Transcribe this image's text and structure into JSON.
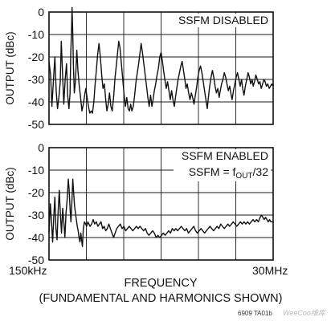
{
  "chart_data": [
    {
      "type": "line",
      "title": "",
      "annotation": "SSFM DISABLED",
      "ylabel": "OUTPUT (dBc)",
      "ylim": [
        -50,
        0
      ],
      "yticks": [
        0,
        -10,
        -20,
        -30,
        -40,
        -50
      ],
      "xlim": [
        0,
        1
      ],
      "grid": true,
      "points": [
        [
          0.0,
          -22
        ],
        [
          0.007,
          -28
        ],
        [
          0.013,
          -42
        ],
        [
          0.02,
          -30
        ],
        [
          0.026,
          -20
        ],
        [
          0.032,
          -35
        ],
        [
          0.038,
          -43
        ],
        [
          0.044,
          -38
        ],
        [
          0.05,
          -31
        ],
        [
          0.055,
          -13
        ],
        [
          0.06,
          -26
        ],
        [
          0.066,
          -41
        ],
        [
          0.072,
          -30
        ],
        [
          0.078,
          -23
        ],
        [
          0.083,
          -37
        ],
        [
          0.089,
          -43
        ],
        [
          0.094,
          -36
        ],
        [
          0.097,
          -18
        ],
        [
          0.1,
          -10
        ],
        [
          0.103,
          2
        ],
        [
          0.106,
          -10
        ],
        [
          0.109,
          -24
        ],
        [
          0.113,
          -36
        ],
        [
          0.118,
          -31
        ],
        [
          0.124,
          -17
        ],
        [
          0.129,
          -26
        ],
        [
          0.135,
          -33
        ],
        [
          0.141,
          -38
        ],
        [
          0.147,
          -44
        ],
        [
          0.153,
          -41
        ],
        [
          0.159,
          -37
        ],
        [
          0.164,
          -34
        ],
        [
          0.17,
          -38
        ],
        [
          0.176,
          -42
        ],
        [
          0.182,
          -45
        ],
        [
          0.188,
          -44
        ],
        [
          0.194,
          -45
        ],
        [
          0.2,
          -40
        ],
        [
          0.205,
          -33
        ],
        [
          0.211,
          -26
        ],
        [
          0.217,
          -19
        ],
        [
          0.223,
          -14
        ],
        [
          0.229,
          -20
        ],
        [
          0.235,
          -28
        ],
        [
          0.241,
          -34
        ],
        [
          0.247,
          -32
        ],
        [
          0.253,
          -39
        ],
        [
          0.258,
          -44
        ],
        [
          0.264,
          -41
        ],
        [
          0.27,
          -36
        ],
        [
          0.276,
          -42
        ],
        [
          0.282,
          -44
        ],
        [
          0.288,
          -38
        ],
        [
          0.294,
          -30
        ],
        [
          0.3,
          -24
        ],
        [
          0.306,
          -18
        ],
        [
          0.311,
          -13
        ],
        [
          0.317,
          -16
        ],
        [
          0.323,
          -23
        ],
        [
          0.329,
          -30
        ],
        [
          0.335,
          -37
        ],
        [
          0.341,
          -42
        ],
        [
          0.347,
          -38
        ],
        [
          0.353,
          -43
        ],
        [
          0.359,
          -44
        ],
        [
          0.364,
          -41
        ],
        [
          0.37,
          -44
        ],
        [
          0.376,
          -42
        ],
        [
          0.382,
          -37
        ],
        [
          0.388,
          -31
        ],
        [
          0.394,
          -27
        ],
        [
          0.4,
          -23
        ],
        [
          0.406,
          -18
        ],
        [
          0.411,
          -14
        ],
        [
          0.417,
          -18
        ],
        [
          0.423,
          -23
        ],
        [
          0.429,
          -28
        ],
        [
          0.435,
          -33
        ],
        [
          0.441,
          -38
        ],
        [
          0.447,
          -42
        ],
        [
          0.453,
          -37
        ],
        [
          0.459,
          -42
        ],
        [
          0.464,
          -39
        ],
        [
          0.47,
          -35
        ],
        [
          0.476,
          -32
        ],
        [
          0.482,
          -28
        ],
        [
          0.488,
          -25
        ],
        [
          0.494,
          -20
        ],
        [
          0.5,
          -18
        ],
        [
          0.506,
          -22
        ],
        [
          0.511,
          -26
        ],
        [
          0.517,
          -30
        ],
        [
          0.523,
          -34
        ],
        [
          0.529,
          -31
        ],
        [
          0.535,
          -35
        ],
        [
          0.541,
          -39
        ],
        [
          0.547,
          -35
        ],
        [
          0.553,
          -39
        ],
        [
          0.559,
          -42
        ],
        [
          0.564,
          -38
        ],
        [
          0.57,
          -34
        ],
        [
          0.576,
          -30
        ],
        [
          0.582,
          -27
        ],
        [
          0.588,
          -24
        ],
        [
          0.594,
          -22
        ],
        [
          0.6,
          -26
        ],
        [
          0.606,
          -30
        ],
        [
          0.611,
          -34
        ],
        [
          0.617,
          -32
        ],
        [
          0.623,
          -36
        ],
        [
          0.629,
          -39
        ],
        [
          0.635,
          -36
        ],
        [
          0.641,
          -38
        ],
        [
          0.647,
          -41
        ],
        [
          0.653,
          -37
        ],
        [
          0.659,
          -33
        ],
        [
          0.664,
          -29
        ],
        [
          0.67,
          -26
        ],
        [
          0.676,
          -24
        ],
        [
          0.682,
          -27
        ],
        [
          0.688,
          -31
        ],
        [
          0.694,
          -35
        ],
        [
          0.7,
          -39
        ],
        [
          0.706,
          -43
        ],
        [
          0.711,
          -38
        ],
        [
          0.717,
          -33
        ],
        [
          0.723,
          -29
        ],
        [
          0.729,
          -26
        ],
        [
          0.735,
          -29
        ],
        [
          0.741,
          -33
        ],
        [
          0.747,
          -36
        ],
        [
          0.753,
          -34
        ],
        [
          0.759,
          -38
        ],
        [
          0.764,
          -35
        ],
        [
          0.77,
          -32
        ],
        [
          0.776,
          -30
        ],
        [
          0.782,
          -27
        ],
        [
          0.788,
          -29
        ],
        [
          0.794,
          -32
        ],
        [
          0.8,
          -35
        ],
        [
          0.806,
          -33
        ],
        [
          0.811,
          -36
        ],
        [
          0.817,
          -39
        ],
        [
          0.823,
          -35
        ],
        [
          0.829,
          -32
        ],
        [
          0.835,
          -29
        ],
        [
          0.841,
          -27
        ],
        [
          0.847,
          -30
        ],
        [
          0.853,
          -33
        ],
        [
          0.859,
          -30
        ],
        [
          0.864,
          -34
        ],
        [
          0.87,
          -37
        ],
        [
          0.876,
          -33
        ],
        [
          0.882,
          -30
        ],
        [
          0.888,
          -27
        ],
        [
          0.894,
          -29
        ],
        [
          0.9,
          -32
        ],
        [
          0.906,
          -30
        ],
        [
          0.911,
          -33
        ],
        [
          0.917,
          -31
        ],
        [
          0.923,
          -28
        ],
        [
          0.929,
          -30
        ],
        [
          0.935,
          -32
        ],
        [
          0.941,
          -31
        ],
        [
          0.947,
          -34
        ],
        [
          0.953,
          -32
        ],
        [
          0.959,
          -30
        ],
        [
          0.964,
          -31
        ],
        [
          0.97,
          -33
        ],
        [
          0.976,
          -32
        ],
        [
          0.982,
          -34
        ],
        [
          0.988,
          -33
        ],
        [
          0.994,
          -32
        ],
        [
          1.0,
          -33
        ]
      ]
    },
    {
      "type": "line",
      "title": "",
      "annotation_line1": "SSFM ENABLED",
      "annotation_line2_prefix": "SSFM = f",
      "annotation_line2_sub": "OUT",
      "annotation_line2_suffix": "/32",
      "ylabel": "OUTPUT (dBc)",
      "ylim": [
        -50,
        0
      ],
      "yticks": [
        0,
        -10,
        -20,
        -30,
        -40,
        -50
      ],
      "xlim": [
        0,
        1
      ],
      "xlabel": "FREQUENCY",
      "xnote": "(FUNDAMENTAL AND HARMONICS SHOWN)",
      "xtick_left": "150kHz",
      "xtick_right": "30MHz",
      "grid": true,
      "points": [
        [
          0.0,
          -38
        ],
        [
          0.006,
          -25
        ],
        [
          0.011,
          -33
        ],
        [
          0.016,
          -42
        ],
        [
          0.021,
          -31
        ],
        [
          0.026,
          -22
        ],
        [
          0.031,
          -36
        ],
        [
          0.036,
          -41
        ],
        [
          0.041,
          -28
        ],
        [
          0.046,
          -19
        ],
        [
          0.051,
          -30
        ],
        [
          0.056,
          -38
        ],
        [
          0.061,
          -27
        ],
        [
          0.066,
          -33
        ],
        [
          0.071,
          -40
        ],
        [
          0.076,
          -29
        ],
        [
          0.081,
          -23
        ],
        [
          0.086,
          -14
        ],
        [
          0.09,
          -19
        ],
        [
          0.094,
          -27
        ],
        [
          0.098,
          -33
        ],
        [
          0.102,
          -24
        ],
        [
          0.106,
          -14
        ],
        [
          0.11,
          -20
        ],
        [
          0.114,
          -26
        ],
        [
          0.118,
          -29
        ],
        [
          0.122,
          -32
        ],
        [
          0.126,
          -35
        ],
        [
          0.13,
          -37
        ],
        [
          0.134,
          -40
        ],
        [
          0.138,
          -42
        ],
        [
          0.142,
          -38
        ],
        [
          0.145,
          -41
        ],
        [
          0.149,
          -44
        ],
        [
          0.153,
          -36
        ],
        [
          0.158,
          -33
        ],
        [
          0.163,
          -34
        ],
        [
          0.168,
          -35
        ],
        [
          0.173,
          -33
        ],
        [
          0.178,
          -34
        ],
        [
          0.183,
          -35
        ],
        [
          0.19,
          -34
        ],
        [
          0.197,
          -32
        ],
        [
          0.204,
          -34
        ],
        [
          0.211,
          -33
        ],
        [
          0.218,
          -35
        ],
        [
          0.225,
          -34
        ],
        [
          0.232,
          -33
        ],
        [
          0.239,
          -36
        ],
        [
          0.246,
          -35
        ],
        [
          0.253,
          -37
        ],
        [
          0.26,
          -36
        ],
        [
          0.267,
          -34
        ],
        [
          0.274,
          -36
        ],
        [
          0.281,
          -38
        ],
        [
          0.288,
          -40
        ],
        [
          0.295,
          -38
        ],
        [
          0.302,
          -36
        ],
        [
          0.31,
          -35
        ],
        [
          0.318,
          -34
        ],
        [
          0.326,
          -36
        ],
        [
          0.334,
          -35
        ],
        [
          0.342,
          -37
        ],
        [
          0.35,
          -36
        ],
        [
          0.358,
          -35
        ],
        [
          0.366,
          -36
        ],
        [
          0.374,
          -37
        ],
        [
          0.382,
          -36
        ],
        [
          0.39,
          -35
        ],
        [
          0.398,
          -36
        ],
        [
          0.406,
          -35
        ],
        [
          0.414,
          -36
        ],
        [
          0.422,
          -37
        ],
        [
          0.43,
          -36
        ],
        [
          0.438,
          -38
        ],
        [
          0.446,
          -39
        ],
        [
          0.454,
          -38
        ],
        [
          0.462,
          -37
        ],
        [
          0.47,
          -38
        ],
        [
          0.478,
          -40
        ],
        [
          0.486,
          -39
        ],
        [
          0.494,
          -40
        ],
        [
          0.502,
          -39
        ],
        [
          0.51,
          -38
        ],
        [
          0.518,
          -39
        ],
        [
          0.526,
          -38
        ],
        [
          0.534,
          -37
        ],
        [
          0.542,
          -38
        ],
        [
          0.55,
          -36
        ],
        [
          0.558,
          -37
        ],
        [
          0.566,
          -36
        ],
        [
          0.574,
          -37
        ],
        [
          0.582,
          -36
        ],
        [
          0.59,
          -35
        ],
        [
          0.598,
          -36
        ],
        [
          0.606,
          -37
        ],
        [
          0.614,
          -36
        ],
        [
          0.622,
          -38
        ],
        [
          0.63,
          -37
        ],
        [
          0.638,
          -36
        ],
        [
          0.646,
          -35
        ],
        [
          0.654,
          -37
        ],
        [
          0.662,
          -38
        ],
        [
          0.67,
          -37
        ],
        [
          0.678,
          -36
        ],
        [
          0.686,
          -37
        ],
        [
          0.694,
          -38
        ],
        [
          0.702,
          -37
        ],
        [
          0.71,
          -36
        ],
        [
          0.718,
          -35
        ],
        [
          0.726,
          -36
        ],
        [
          0.734,
          -37
        ],
        [
          0.742,
          -36
        ],
        [
          0.75,
          -35
        ],
        [
          0.758,
          -36
        ],
        [
          0.766,
          -34
        ],
        [
          0.774,
          -35
        ],
        [
          0.782,
          -36
        ],
        [
          0.79,
          -35
        ],
        [
          0.798,
          -34
        ],
        [
          0.806,
          -35
        ],
        [
          0.814,
          -34
        ],
        [
          0.822,
          -33
        ],
        [
          0.83,
          -34
        ],
        [
          0.838,
          -35
        ],
        [
          0.846,
          -34
        ],
        [
          0.854,
          -33
        ],
        [
          0.862,
          -34
        ],
        [
          0.87,
          -33
        ],
        [
          0.878,
          -34
        ],
        [
          0.886,
          -33
        ],
        [
          0.894,
          -34
        ],
        [
          0.902,
          -33
        ],
        [
          0.91,
          -32
        ],
        [
          0.918,
          -33
        ],
        [
          0.926,
          -32
        ],
        [
          0.934,
          -33
        ],
        [
          0.942,
          -31
        ],
        [
          0.948,
          -30
        ],
        [
          0.954,
          -31
        ],
        [
          0.96,
          -32
        ],
        [
          0.966,
          -31
        ],
        [
          0.972,
          -32
        ],
        [
          0.978,
          -33
        ],
        [
          0.984,
          -32
        ],
        [
          0.99,
          -33
        ],
        [
          1.0,
          -33
        ]
      ]
    }
  ],
  "figure_id": "6909 TA01b",
  "watermark": "WeeCoo维库"
}
